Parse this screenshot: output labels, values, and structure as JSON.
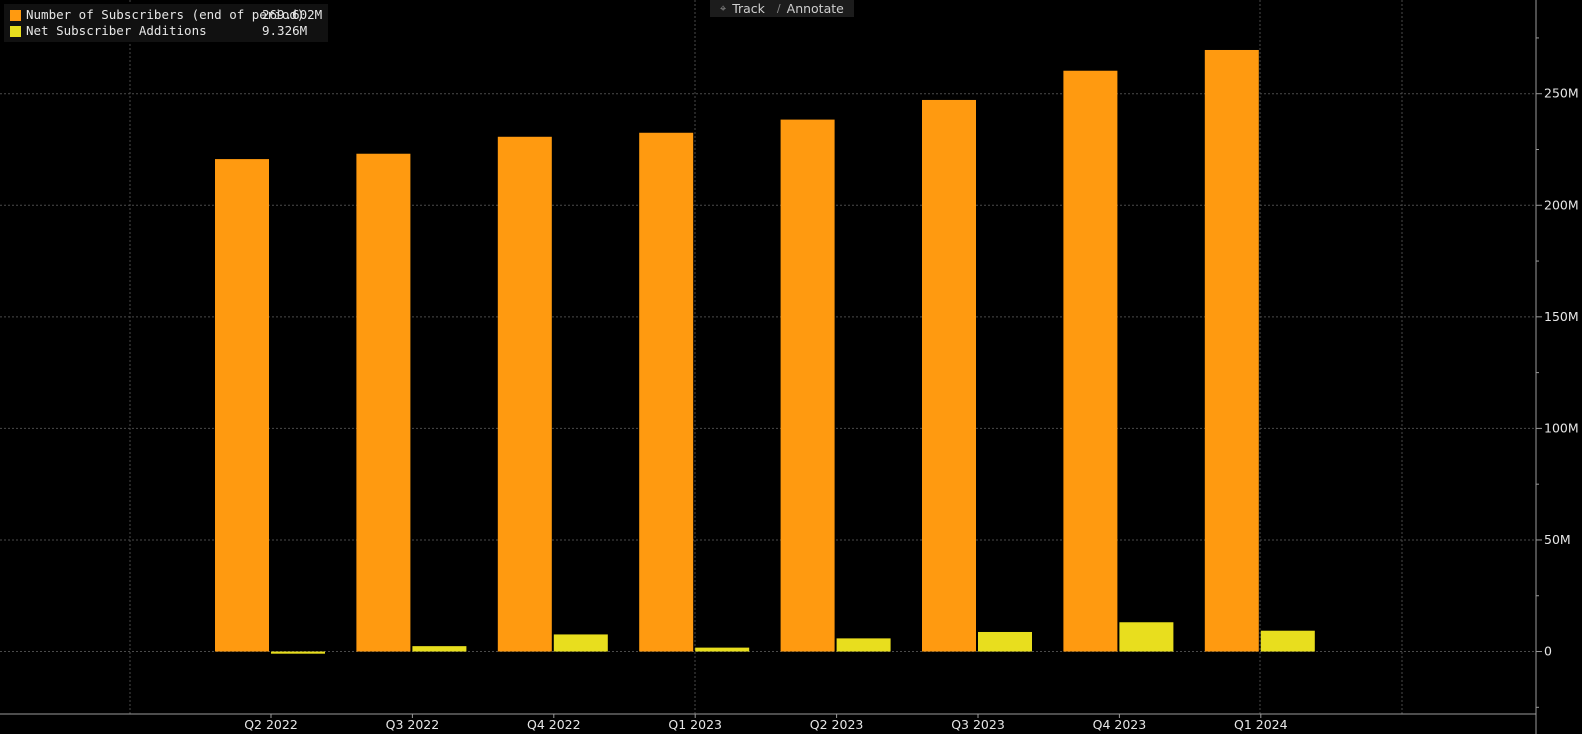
{
  "toolbar": {
    "track_label": "Track",
    "annotate_label": "Annotate"
  },
  "legend": [
    {
      "name": "Number of Subscribers (end of period)",
      "value": "269.602M",
      "color": "#ff9a10"
    },
    {
      "name": "Net Subscriber Additions",
      "value": "9.326M",
      "color": "#e8de1e"
    }
  ],
  "chart_data": {
    "type": "bar",
    "categories": [
      "Q2 2022",
      "Q3 2022",
      "Q4 2022",
      "Q1 2023",
      "Q2 2023",
      "Q3 2023",
      "Q4 2023",
      "Q1 2024"
    ],
    "series": [
      {
        "name": "Number of Subscribers (end of period)",
        "color": "#ff9a10",
        "values": [
          220.7,
          223.1,
          230.7,
          232.5,
          238.4,
          247.2,
          260.3,
          269.6
        ]
      },
      {
        "name": "Net Subscriber Additions",
        "color": "#e8de1e",
        "values": [
          -0.97,
          2.41,
          7.66,
          1.75,
          5.89,
          8.76,
          13.12,
          9.33
        ]
      }
    ],
    "y_ticks": [
      {
        "value": 0,
        "label": "0"
      },
      {
        "value": 50,
        "label": "50M"
      },
      {
        "value": 100,
        "label": "100M"
      },
      {
        "value": 150,
        "label": "150M"
      },
      {
        "value": 200,
        "label": "200M"
      },
      {
        "value": 250,
        "label": "250M"
      }
    ],
    "ylim": [
      -28,
      292
    ],
    "y_axis_position": "right",
    "grid": true,
    "legend_position": "top-left"
  }
}
